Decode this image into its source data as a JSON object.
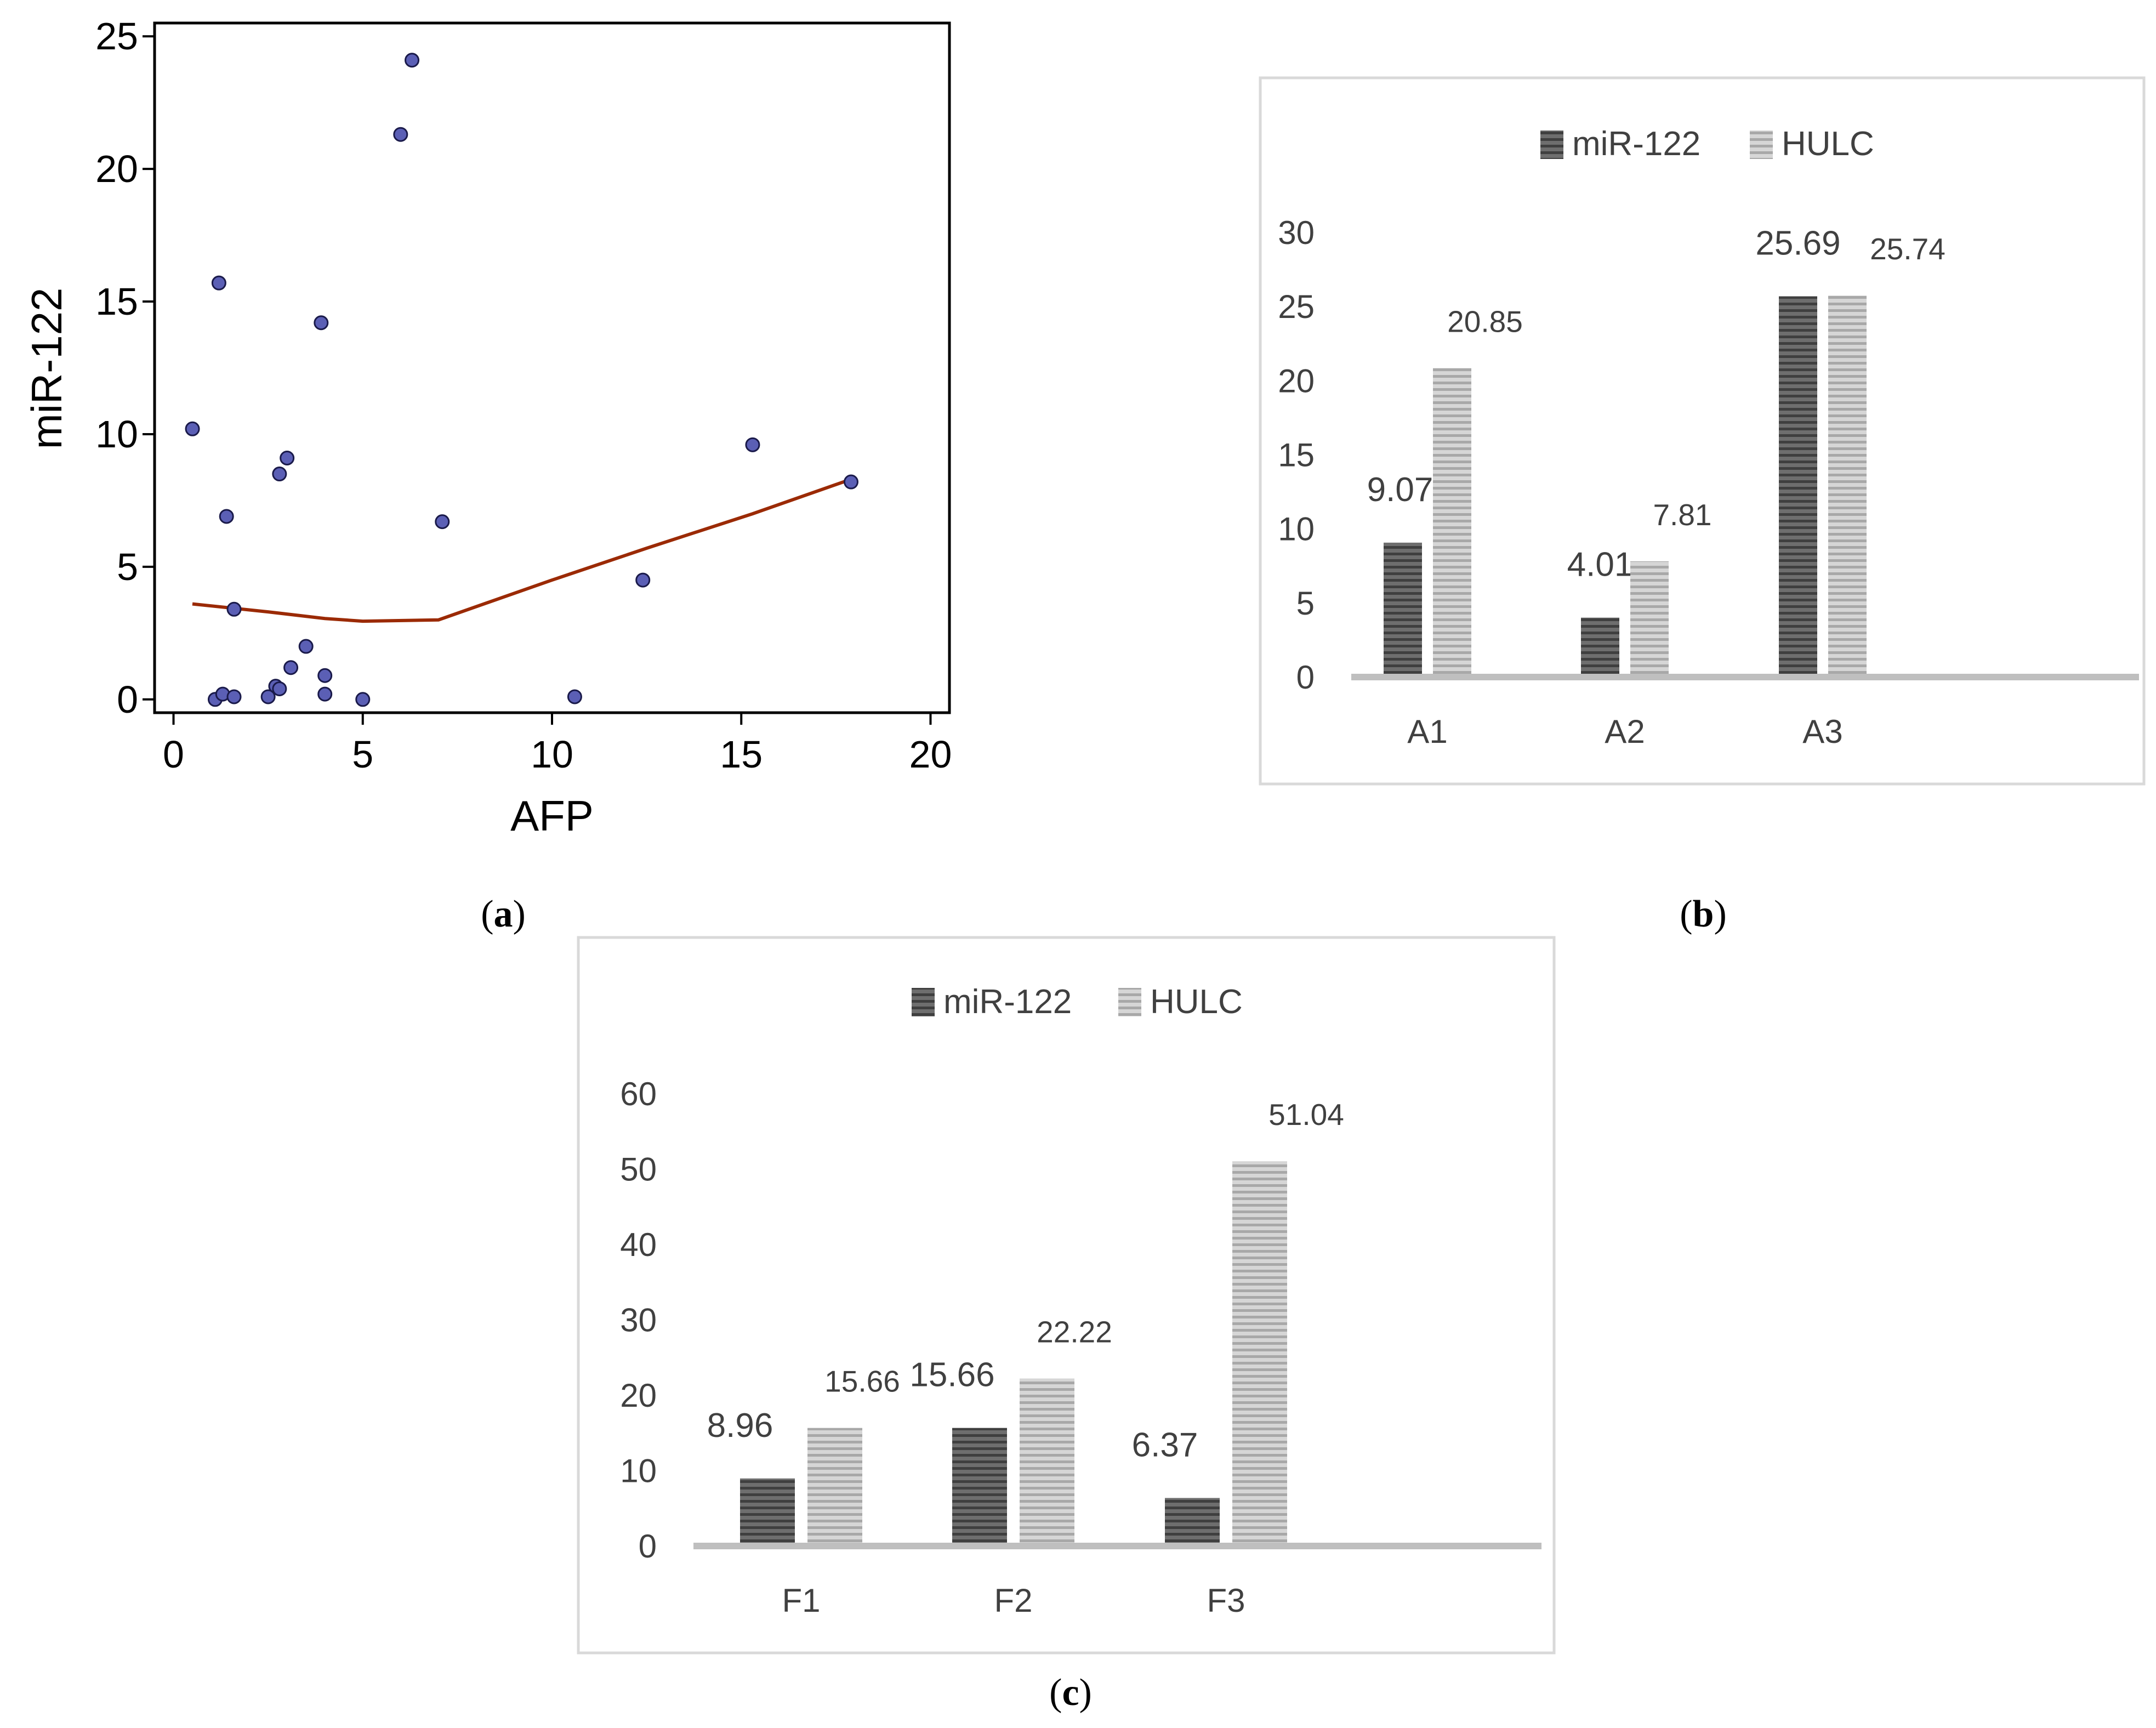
{
  "chart_data": [
    {
      "id": "a",
      "panel_label": "a",
      "type": "scatter",
      "xlabel": "AFP",
      "ylabel": "miR-122",
      "xlim": [
        -0.5,
        20.5
      ],
      "ylim": [
        -0.5,
        25.5
      ],
      "xticks": [
        "0",
        "5",
        "10",
        "15",
        "20"
      ],
      "yticks": [
        "0",
        "5",
        "10",
        "15",
        "20",
        "25"
      ],
      "point_color": "#5b5fb5",
      "trend_color": "#9b2a05",
      "points": [
        {
          "x": 0.5,
          "y": 10.2
        },
        {
          "x": 1.1,
          "y": 0.0
        },
        {
          "x": 1.2,
          "y": 15.7
        },
        {
          "x": 1.3,
          "y": 0.2
        },
        {
          "x": 1.4,
          "y": 6.9
        },
        {
          "x": 1.6,
          "y": 3.4
        },
        {
          "x": 1.6,
          "y": 0.1
        },
        {
          "x": 2.5,
          "y": 0.1
        },
        {
          "x": 2.7,
          "y": 0.5
        },
        {
          "x": 2.8,
          "y": 8.5
        },
        {
          "x": 2.8,
          "y": 0.4
        },
        {
          "x": 3.0,
          "y": 9.1
        },
        {
          "x": 3.1,
          "y": 1.2
        },
        {
          "x": 3.5,
          "y": 2.0
        },
        {
          "x": 3.9,
          "y": 14.2
        },
        {
          "x": 4.0,
          "y": 0.9
        },
        {
          "x": 4.0,
          "y": 0.2
        },
        {
          "x": 5.0,
          "y": 0.0
        },
        {
          "x": 6.0,
          "y": 21.3
        },
        {
          "x": 6.3,
          "y": 24.1
        },
        {
          "x": 7.1,
          "y": 6.7
        },
        {
          "x": 10.6,
          "y": 0.1
        },
        {
          "x": 12.4,
          "y": 4.5
        },
        {
          "x": 15.3,
          "y": 9.6
        },
        {
          "x": 17.9,
          "y": 8.2
        }
      ],
      "trend": [
        {
          "x": 0.5,
          "y": 3.6
        },
        {
          "x": 2.5,
          "y": 3.3
        },
        {
          "x": 4.0,
          "y": 3.05
        },
        {
          "x": 5.0,
          "y": 2.95
        },
        {
          "x": 7.0,
          "y": 3.0
        },
        {
          "x": 10.0,
          "y": 4.5
        },
        {
          "x": 12.5,
          "y": 5.7
        },
        {
          "x": 15.3,
          "y": 7.0
        },
        {
          "x": 17.9,
          "y": 8.3
        }
      ]
    },
    {
      "id": "b",
      "panel_label": "b",
      "type": "bar",
      "categories": [
        "A1",
        "A2",
        "A3"
      ],
      "series": [
        {
          "name": "miR-122",
          "values": [
            9.07,
            4.01,
            25.69
          ],
          "labels": [
            "9.07",
            "4.01",
            "25.69"
          ],
          "color": "#5a5a5a"
        },
        {
          "name": "HULC",
          "values": [
            20.85,
            7.81,
            25.74
          ],
          "labels": [
            "20.85",
            "7.81",
            "25.74"
          ],
          "color": "#bcbcbc"
        }
      ],
      "ylim": [
        0,
        30
      ],
      "yticks": [
        "0",
        "5",
        "10",
        "15",
        "20",
        "25",
        "30"
      ],
      "legend": "top"
    },
    {
      "id": "c",
      "panel_label": "c",
      "type": "bar",
      "categories": [
        "F1",
        "F2",
        "F3"
      ],
      "series": [
        {
          "name": "miR-122",
          "values": [
            8.96,
            15.66,
            6.37
          ],
          "labels": [
            "8.96",
            "15.66",
            "6.37"
          ],
          "color": "#5a5a5a"
        },
        {
          "name": "HULC",
          "values": [
            15.66,
            22.22,
            51.04
          ],
          "labels": [
            "15.66",
            "22.22",
            "51.04"
          ],
          "color": "#bcbcbc"
        }
      ],
      "ylim": [
        0,
        60
      ],
      "yticks": [
        "0",
        "10",
        "20",
        "30",
        "40",
        "50",
        "60"
      ],
      "legend": "top"
    }
  ]
}
